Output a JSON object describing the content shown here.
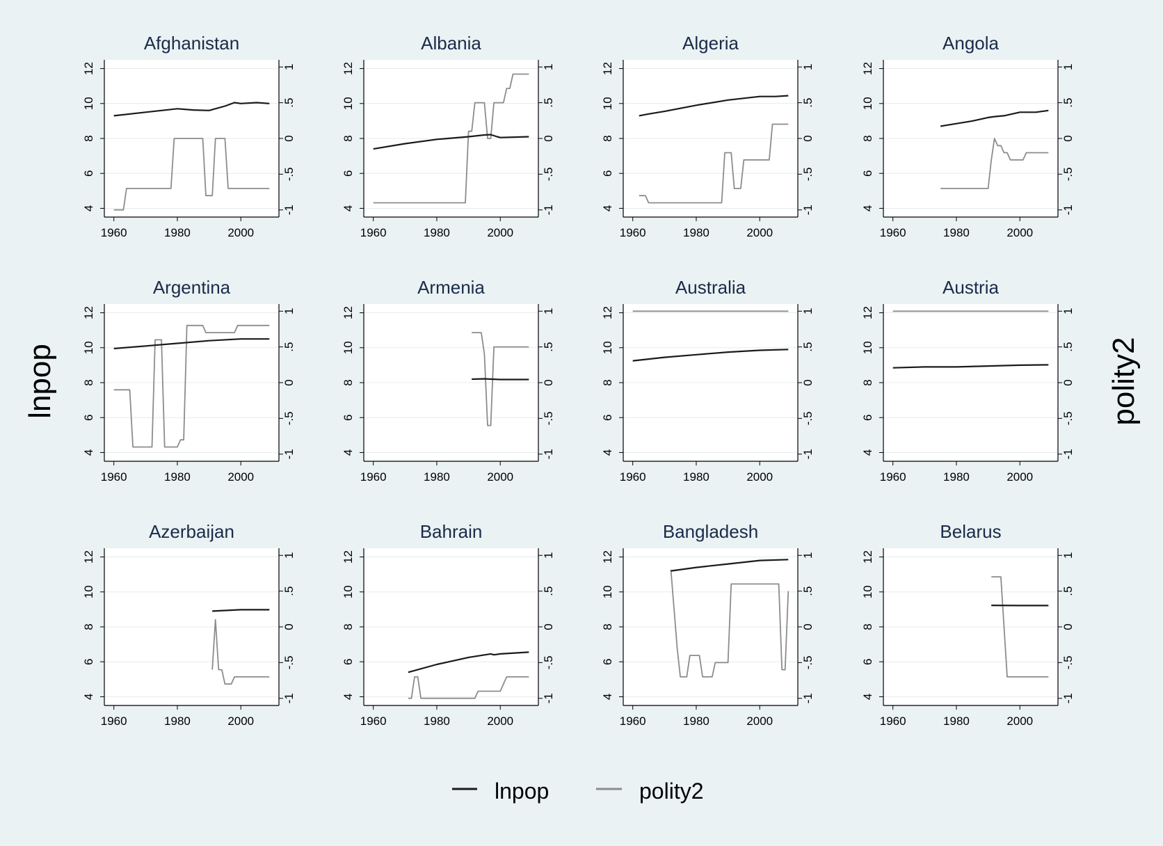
{
  "figure": {
    "left_axis_title": "lnpop",
    "right_axis_title": "polity2",
    "legend": [
      {
        "label": "lnpop",
        "color": "#1a1a1a"
      },
      {
        "label": "polity2",
        "color": "#8c8c8c"
      }
    ],
    "colors": {
      "background": "#eaf2f3",
      "plot_background": "#ffffff",
      "title": "#1a2b4a",
      "grid": "#e6ecee"
    }
  },
  "chart_data": [
    {
      "type": "line",
      "title": "Afghanistan",
      "xlim": [
        1957,
        2012
      ],
      "ylim_left": [
        3.5,
        12.5
      ],
      "ylim_right": [
        -1.1,
        1.1
      ],
      "x_ticks": [
        "1960",
        "1980",
        "2000"
      ],
      "y_ticks_left": [
        "4",
        "6",
        "8",
        "10",
        "12"
      ],
      "y_ticks_right": [
        "-1",
        "-.5",
        "0",
        ".5",
        "1"
      ],
      "series": [
        {
          "name": "lnpop",
          "axis": "left",
          "x": [
            1960,
            1970,
            1980,
            1985,
            1990,
            1995,
            1998,
            2000,
            2005,
            2009
          ],
          "y": [
            9.3,
            9.5,
            9.7,
            9.63,
            9.6,
            9.85,
            10.05,
            10.0,
            10.05,
            10.0
          ]
        },
        {
          "name": "polity2",
          "axis": "right",
          "x": [
            1960,
            1963,
            1964,
            1978,
            1979,
            1988,
            1989,
            1991,
            1992,
            1995,
            1996,
            2009
          ],
          "y": [
            -1,
            -1,
            -0.7,
            -0.7,
            0,
            0,
            -0.8,
            -0.8,
            0,
            0,
            -0.7,
            -0.7
          ]
        }
      ]
    },
    {
      "type": "line",
      "title": "Albania",
      "xlim": [
        1957,
        2012
      ],
      "ylim_left": [
        3.5,
        12.5
      ],
      "ylim_right": [
        -1.1,
        1.1
      ],
      "x_ticks": [
        "1960",
        "1980",
        "2000"
      ],
      "y_ticks_left": [
        "4",
        "6",
        "8",
        "10",
        "12"
      ],
      "y_ticks_right": [
        "-1",
        "-.5",
        "0",
        ".5",
        "1"
      ],
      "series": [
        {
          "name": "lnpop",
          "axis": "left",
          "x": [
            1960,
            1970,
            1980,
            1990,
            1995,
            1997,
            1999,
            2000,
            2009
          ],
          "y": [
            7.4,
            7.7,
            7.95,
            8.1,
            8.2,
            8.22,
            8.1,
            8.05,
            8.1
          ]
        },
        {
          "name": "polity2",
          "axis": "right",
          "x": [
            1960,
            1989,
            1990,
            1991,
            1992,
            1995,
            1996,
            1997,
            1998,
            2001,
            2002,
            2003,
            2004,
            2005,
            2009
          ],
          "y": [
            -0.9,
            -0.9,
            0.1,
            0.1,
            0.5,
            0.5,
            0,
            0,
            0.5,
            0.5,
            0.7,
            0.7,
            0.9,
            0.9,
            0.9
          ]
        }
      ]
    },
    {
      "type": "line",
      "title": "Algeria",
      "xlim": [
        1957,
        2012
      ],
      "ylim_left": [
        3.5,
        12.5
      ],
      "ylim_right": [
        -1.1,
        1.1
      ],
      "x_ticks": [
        "1960",
        "1980",
        "2000"
      ],
      "y_ticks_left": [
        "4",
        "6",
        "8",
        "10",
        "12"
      ],
      "y_ticks_right": [
        "-1",
        "-.5",
        "0",
        ".5",
        "1"
      ],
      "series": [
        {
          "name": "lnpop",
          "axis": "left",
          "x": [
            1962,
            1965,
            1970,
            1980,
            1990,
            2000,
            2005,
            2009
          ],
          "y": [
            9.3,
            9.4,
            9.55,
            9.9,
            10.2,
            10.4,
            10.4,
            10.45
          ]
        },
        {
          "name": "polity2",
          "axis": "right",
          "x": [
            1962,
            1964,
            1965,
            1988,
            1989,
            1991,
            1992,
            1994,
            1995,
            2003,
            2004,
            2009
          ],
          "y": [
            -0.8,
            -0.8,
            -0.9,
            -0.9,
            -0.2,
            -0.2,
            -0.7,
            -0.7,
            -0.3,
            -0.3,
            0.2,
            0.2
          ]
        }
      ]
    },
    {
      "type": "line",
      "title": "Angola",
      "xlim": [
        1957,
        2012
      ],
      "ylim_left": [
        3.5,
        12.5
      ],
      "ylim_right": [
        -1.1,
        1.1
      ],
      "x_ticks": [
        "1960",
        "1980",
        "2000"
      ],
      "y_ticks_left": [
        "4",
        "6",
        "8",
        "10",
        "12"
      ],
      "y_ticks_right": [
        "-1",
        "-.5",
        "0",
        ".5",
        "1"
      ],
      "series": [
        {
          "name": "lnpop",
          "axis": "left",
          "x": [
            1975,
            1980,
            1985,
            1990,
            1992,
            1995,
            2000,
            2005,
            2009
          ],
          "y": [
            8.7,
            8.85,
            9.0,
            9.2,
            9.25,
            9.3,
            9.5,
            9.5,
            9.6
          ]
        },
        {
          "name": "polity2",
          "axis": "right",
          "x": [
            1975,
            1990,
            1991,
            1992,
            1993,
            1994,
            1995,
            1996,
            1997,
            2001,
            2002,
            2009
          ],
          "y": [
            -0.7,
            -0.7,
            -0.3,
            0,
            -0.1,
            -0.1,
            -0.2,
            -0.2,
            -0.3,
            -0.3,
            -0.2,
            -0.2
          ]
        }
      ]
    },
    {
      "type": "line",
      "title": "Argentina",
      "xlim": [
        1957,
        2012
      ],
      "ylim_left": [
        3.5,
        12.5
      ],
      "ylim_right": [
        -1.1,
        1.1
      ],
      "x_ticks": [
        "1960",
        "1980",
        "2000"
      ],
      "y_ticks_left": [
        "4",
        "6",
        "8",
        "10",
        "12"
      ],
      "y_ticks_right": [
        "-1",
        "-.5",
        "0",
        ".5",
        "1"
      ],
      "series": [
        {
          "name": "lnpop",
          "axis": "left",
          "x": [
            1960,
            1970,
            1980,
            1990,
            2000,
            2009
          ],
          "y": [
            9.95,
            10.1,
            10.25,
            10.4,
            10.5,
            10.5
          ]
        },
        {
          "name": "polity2",
          "axis": "right",
          "x": [
            1960,
            1965,
            1966,
            1972,
            1973,
            1975,
            1976,
            1980,
            1981,
            1982,
            1983,
            1988,
            1989,
            1998,
            1999,
            2009
          ],
          "y": [
            -0.1,
            -0.1,
            -0.9,
            -0.9,
            0.6,
            0.6,
            -0.9,
            -0.9,
            -0.8,
            -0.8,
            0.8,
            0.8,
            0.7,
            0.7,
            0.8,
            0.8
          ]
        }
      ]
    },
    {
      "type": "line",
      "title": "Armenia",
      "xlim": [
        1957,
        2012
      ],
      "ylim_left": [
        3.5,
        12.5
      ],
      "ylim_right": [
        -1.1,
        1.1
      ],
      "x_ticks": [
        "1960",
        "1980",
        "2000"
      ],
      "y_ticks_left": [
        "4",
        "6",
        "8",
        "10",
        "12"
      ],
      "y_ticks_right": [
        "-1",
        "-.5",
        "0",
        ".5",
        "1"
      ],
      "series": [
        {
          "name": "lnpop",
          "axis": "left",
          "x": [
            1991,
            1995,
            2000,
            2009
          ],
          "y": [
            8.2,
            8.22,
            8.18,
            8.18
          ]
        },
        {
          "name": "polity2",
          "axis": "right",
          "x": [
            1991,
            1994,
            1995,
            1996,
            1997,
            1998,
            2009
          ],
          "y": [
            0.7,
            0.7,
            0.4,
            -0.6,
            -0.6,
            0.5,
            0.5
          ]
        }
      ]
    },
    {
      "type": "line",
      "title": "Australia",
      "xlim": [
        1957,
        2012
      ],
      "ylim_left": [
        3.5,
        12.5
      ],
      "ylim_right": [
        -1.1,
        1.1
      ],
      "x_ticks": [
        "1960",
        "1980",
        "2000"
      ],
      "y_ticks_left": [
        "4",
        "6",
        "8",
        "10",
        "12"
      ],
      "y_ticks_right": [
        "-1",
        "-.5",
        "0",
        ".5",
        "1"
      ],
      "series": [
        {
          "name": "lnpop",
          "axis": "left",
          "x": [
            1960,
            1970,
            1980,
            1990,
            2000,
            2009
          ],
          "y": [
            9.25,
            9.45,
            9.6,
            9.75,
            9.85,
            9.9
          ]
        },
        {
          "name": "polity2",
          "axis": "right",
          "x": [
            1960,
            2009
          ],
          "y": [
            1,
            1
          ]
        }
      ]
    },
    {
      "type": "line",
      "title": "Austria",
      "xlim": [
        1957,
        2012
      ],
      "ylim_left": [
        3.5,
        12.5
      ],
      "ylim_right": [
        -1.1,
        1.1
      ],
      "x_ticks": [
        "1960",
        "1980",
        "2000"
      ],
      "y_ticks_left": [
        "4",
        "6",
        "8",
        "10",
        "12"
      ],
      "y_ticks_right": [
        "-1",
        "-.5",
        "0",
        ".5",
        "1"
      ],
      "series": [
        {
          "name": "lnpop",
          "axis": "left",
          "x": [
            1960,
            1970,
            1980,
            1990,
            2000,
            2009
          ],
          "y": [
            8.85,
            8.9,
            8.9,
            8.95,
            9.0,
            9.02
          ]
        },
        {
          "name": "polity2",
          "axis": "right",
          "x": [
            1960,
            2009
          ],
          "y": [
            1,
            1
          ]
        }
      ]
    },
    {
      "type": "line",
      "title": "Azerbaijan",
      "xlim": [
        1957,
        2012
      ],
      "ylim_left": [
        3.5,
        12.5
      ],
      "ylim_right": [
        -1.1,
        1.1
      ],
      "x_ticks": [
        "1960",
        "1980",
        "2000"
      ],
      "y_ticks_left": [
        "4",
        "6",
        "8",
        "10",
        "12"
      ],
      "y_ticks_right": [
        "-1",
        "-.5",
        "0",
        ".5",
        "1"
      ],
      "series": [
        {
          "name": "lnpop",
          "axis": "left",
          "x": [
            1991,
            2000,
            2009
          ],
          "y": [
            8.9,
            8.98,
            8.98
          ]
        },
        {
          "name": "polity2",
          "axis": "right",
          "x": [
            1991,
            1992,
            1993,
            1994,
            1995,
            1997,
            1998,
            2009
          ],
          "y": [
            -0.6,
            0.1,
            -0.6,
            -0.6,
            -0.8,
            -0.8,
            -0.7,
            -0.7
          ]
        }
      ]
    },
    {
      "type": "line",
      "title": "Bahrain",
      "xlim": [
        1957,
        2012
      ],
      "ylim_left": [
        3.5,
        12.5
      ],
      "ylim_right": [
        -1.1,
        1.1
      ],
      "x_ticks": [
        "1960",
        "1980",
        "2000"
      ],
      "y_ticks_left": [
        "4",
        "6",
        "8",
        "10",
        "12"
      ],
      "y_ticks_right": [
        "-1",
        "-.5",
        "0",
        ".5",
        "1"
      ],
      "series": [
        {
          "name": "lnpop",
          "axis": "left",
          "x": [
            1971,
            1980,
            1990,
            1997,
            1998,
            2000,
            2009
          ],
          "y": [
            5.4,
            5.85,
            6.25,
            6.45,
            6.4,
            6.45,
            6.55
          ]
        },
        {
          "name": "polity2",
          "axis": "right",
          "x": [
            1971,
            1972,
            1973,
            1974,
            1975,
            1992,
            1993,
            2000,
            2002,
            2009
          ],
          "y": [
            -1,
            -1,
            -0.7,
            -0.7,
            -1,
            -1,
            -0.9,
            -0.9,
            -0.7,
            -0.7
          ]
        }
      ]
    },
    {
      "type": "line",
      "title": "Bangladesh",
      "xlim": [
        1957,
        2012
      ],
      "ylim_left": [
        3.5,
        12.5
      ],
      "ylim_right": [
        -1.1,
        1.1
      ],
      "x_ticks": [
        "1960",
        "1980",
        "2000"
      ],
      "y_ticks_left": [
        "4",
        "6",
        "8",
        "10",
        "12"
      ],
      "y_ticks_right": [
        "-1",
        "-.5",
        "0",
        ".5",
        "1"
      ],
      "series": [
        {
          "name": "lnpop",
          "axis": "left",
          "x": [
            1972,
            1980,
            1990,
            2000,
            2009
          ],
          "y": [
            11.2,
            11.4,
            11.6,
            11.8,
            11.85
          ]
        },
        {
          "name": "polity2",
          "axis": "right",
          "x": [
            1972,
            1974,
            1975,
            1977,
            1978,
            1981,
            1982,
            1985,
            1986,
            1990,
            1991,
            2006,
            2007,
            2008,
            2009
          ],
          "y": [
            0.8,
            -0.3,
            -0.7,
            -0.7,
            -0.4,
            -0.4,
            -0.7,
            -0.7,
            -0.5,
            -0.5,
            0.6,
            0.6,
            -0.6,
            -0.6,
            0.5
          ]
        }
      ]
    },
    {
      "type": "line",
      "title": "Belarus",
      "xlim": [
        1957,
        2012
      ],
      "ylim_left": [
        3.5,
        12.5
      ],
      "ylim_right": [
        -1.1,
        1.1
      ],
      "x_ticks": [
        "1960",
        "1980",
        "2000"
      ],
      "y_ticks_left": [
        "4",
        "6",
        "8",
        "10",
        "12"
      ],
      "y_ticks_right": [
        "-1",
        "-.5",
        "0",
        ".5",
        "1"
      ],
      "series": [
        {
          "name": "lnpop",
          "axis": "left",
          "x": [
            1991,
            2000,
            2009
          ],
          "y": [
            9.23,
            9.22,
            9.22
          ]
        },
        {
          "name": "polity2",
          "axis": "right",
          "x": [
            1991,
            1994,
            1996,
            2009
          ],
          "y": [
            0.7,
            0.7,
            -0.7,
            -0.7
          ]
        }
      ]
    }
  ]
}
